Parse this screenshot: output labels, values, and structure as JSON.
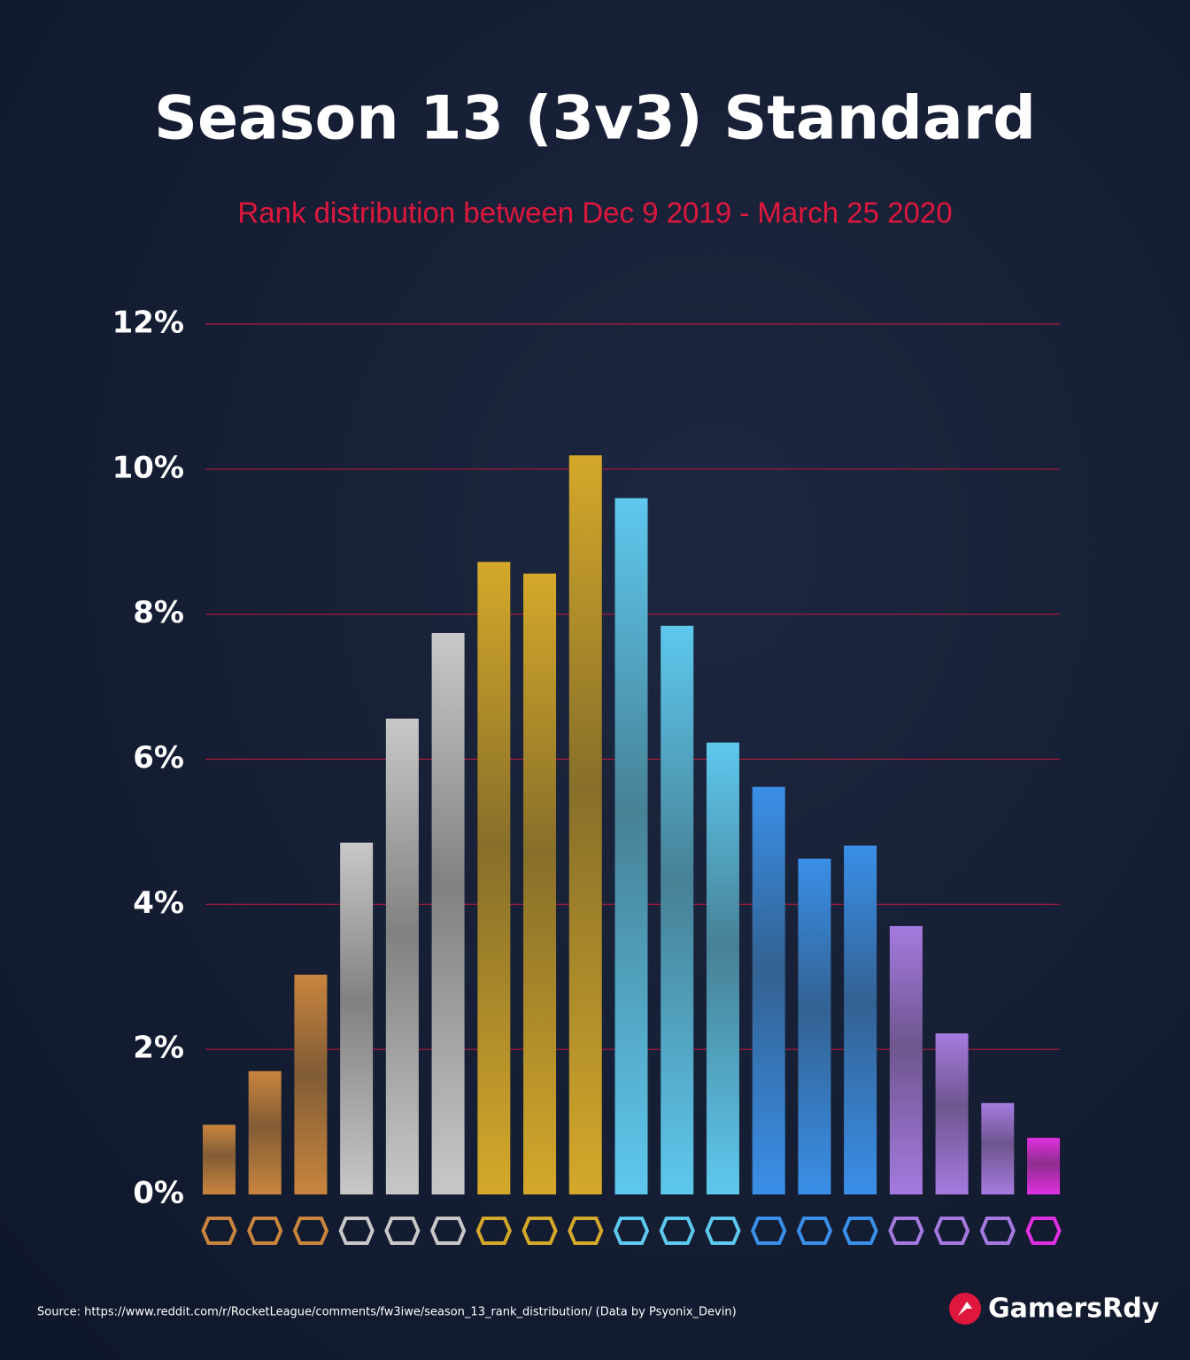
{
  "chart_data": {
    "type": "bar",
    "title": "Season 13 (3v3) Standard",
    "subtitle": "Rank distribution between Dec 9 2019 - March 25 2020",
    "categories": [
      null,
      null,
      null,
      null,
      null,
      null,
      null,
      null,
      null,
      null,
      null,
      null,
      null,
      null,
      null,
      null,
      null,
      null,
      null
    ],
    "values": [
      0.96,
      1.7,
      3.03,
      4.85,
      6.56,
      7.74,
      8.72,
      8.56,
      10.19,
      9.6,
      7.84,
      6.23,
      5.62,
      4.63,
      4.81,
      3.7,
      2.22,
      1.26,
      0.78
    ],
    "colors": [
      "#c9853e",
      "#c9853e",
      "#c9853e",
      "#c8c8c8",
      "#c8c8c8",
      "#c8c8c8",
      "#d4a82a",
      "#d4a82a",
      "#d4a82a",
      "#5ec8ee",
      "#5ec8ee",
      "#5ec8ee",
      "#3a8fe8",
      "#3a8fe8",
      "#3a8fe8",
      "#a57ae0",
      "#a57ae0",
      "#a57ae0",
      "#e030e0"
    ],
    "ylim": [
      0,
      12
    ],
    "yticks": [
      {
        "value": 0,
        "label": "0%"
      },
      {
        "value": 2,
        "label": "2%"
      },
      {
        "value": 4,
        "label": "4%"
      },
      {
        "value": 6,
        "label": "6%"
      },
      {
        "value": 8,
        "label": "8%"
      },
      {
        "value": 10,
        "label": "10%"
      },
      {
        "value": 12,
        "label": "12%"
      }
    ],
    "grid": true,
    "source": "Source: https://www.reddit.com/r/RocketLeague/comments/fw3iwe/season_13_rank_distribution/ (Data by Psyonix_Devin)",
    "brand": "GamersRdy"
  }
}
